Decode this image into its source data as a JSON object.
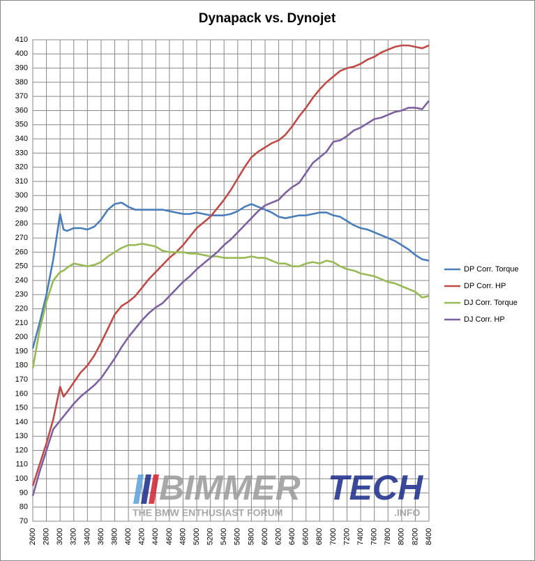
{
  "chart_data": {
    "type": "line",
    "title": "Dynapack vs. Dynojet",
    "x": [
      2600,
      2700,
      2800,
      2900,
      3000,
      3050,
      3100,
      3200,
      3300,
      3400,
      3500,
      3600,
      3700,
      3800,
      3900,
      4000,
      4100,
      4200,
      4300,
      4400,
      4500,
      4600,
      4700,
      4800,
      4900,
      5000,
      5100,
      5200,
      5300,
      5400,
      5500,
      5600,
      5700,
      5800,
      5900,
      6000,
      6100,
      6200,
      6300,
      6400,
      6500,
      6600,
      6700,
      6800,
      6900,
      7000,
      7100,
      7200,
      7300,
      7400,
      7500,
      7600,
      7700,
      7800,
      7900,
      8000,
      8100,
      8200,
      8300,
      8400
    ],
    "series": [
      {
        "name": "DP Corr. Torque",
        "color": "#4a7ebb",
        "values": [
          192,
          210,
          230,
          255,
          287,
          276,
          275,
          277,
          277,
          276,
          278,
          283,
          290,
          294,
          295,
          292,
          290,
          290,
          290,
          290,
          290,
          289,
          288,
          287,
          287,
          288,
          287,
          286,
          286,
          286,
          287,
          289,
          292,
          294,
          292,
          290,
          288,
          285,
          284,
          285,
          286,
          286,
          287,
          288,
          288,
          286,
          285,
          282,
          279,
          277,
          276,
          274,
          272,
          270,
          268,
          265,
          262,
          258,
          255,
          254
        ]
      },
      {
        "name": "DP Corr. HP",
        "color": "#be4b48",
        "values": [
          95,
          110,
          125,
          142,
          165,
          158,
          161,
          168,
          175,
          180,
          187,
          196,
          206,
          216,
          222,
          225,
          229,
          235,
          241,
          246,
          251,
          256,
          260,
          265,
          271,
          277,
          281,
          285,
          291,
          297,
          304,
          312,
          320,
          327,
          331,
          334,
          337,
          339,
          343,
          349,
          356,
          362,
          369,
          375,
          380,
          384,
          388,
          390,
          391,
          393,
          396,
          398,
          401,
          403,
          405,
          406,
          406,
          405,
          404,
          406
        ]
      },
      {
        "name": "DJ Corr. Torque",
        "color": "#98b954",
        "values": [
          178,
          205,
          225,
          240,
          246,
          247,
          249,
          252,
          251,
          250,
          251,
          253,
          257,
          260,
          263,
          265,
          265,
          266,
          265,
          264,
          261,
          260,
          260,
          260,
          259,
          259,
          258,
          257,
          257,
          256,
          256,
          256,
          256,
          257,
          256,
          256,
          254,
          252,
          252,
          250,
          250,
          252,
          253,
          252,
          254,
          253,
          250,
          248,
          247,
          245,
          244,
          243,
          241,
          239,
          238,
          236,
          234,
          232,
          228,
          229
        ]
      },
      {
        "name": "DJ Corr. HP",
        "color": "#7d60a0",
        "values": [
          88,
          105,
          120,
          135,
          141,
          144,
          147,
          153,
          158,
          162,
          166,
          171,
          178,
          185,
          193,
          200,
          206,
          212,
          217,
          221,
          224,
          229,
          234,
          239,
          243,
          248,
          252,
          256,
          260,
          265,
          269,
          274,
          279,
          284,
          289,
          293,
          295,
          297,
          302,
          306,
          309,
          316,
          323,
          327,
          331,
          338,
          339,
          342,
          346,
          348,
          351,
          354,
          355,
          357,
          359,
          360,
          362,
          362,
          361,
          367
        ]
      }
    ],
    "xlim": [
      2600,
      8400
    ],
    "xticks": [
      2600,
      2800,
      3000,
      3200,
      3400,
      3600,
      3800,
      4000,
      4200,
      4400,
      4600,
      4800,
      5000,
      5200,
      5400,
      5600,
      5800,
      6000,
      6200,
      6400,
      6600,
      6800,
      7000,
      7200,
      7400,
      7600,
      7800,
      8000,
      8200,
      8400
    ],
    "ylim": [
      70,
      410
    ],
    "yticks": [
      70,
      80,
      90,
      100,
      110,
      120,
      130,
      140,
      150,
      160,
      170,
      180,
      190,
      200,
      210,
      220,
      230,
      240,
      250,
      260,
      270,
      280,
      290,
      300,
      310,
      320,
      330,
      340,
      350,
      360,
      370,
      380,
      390,
      400,
      410
    ],
    "grid": true,
    "legend": "right",
    "annotations": [
      "BIMMER",
      "TECH",
      "THE BMW ENTHUSIAST FORUM",
      ".INFO"
    ]
  }
}
